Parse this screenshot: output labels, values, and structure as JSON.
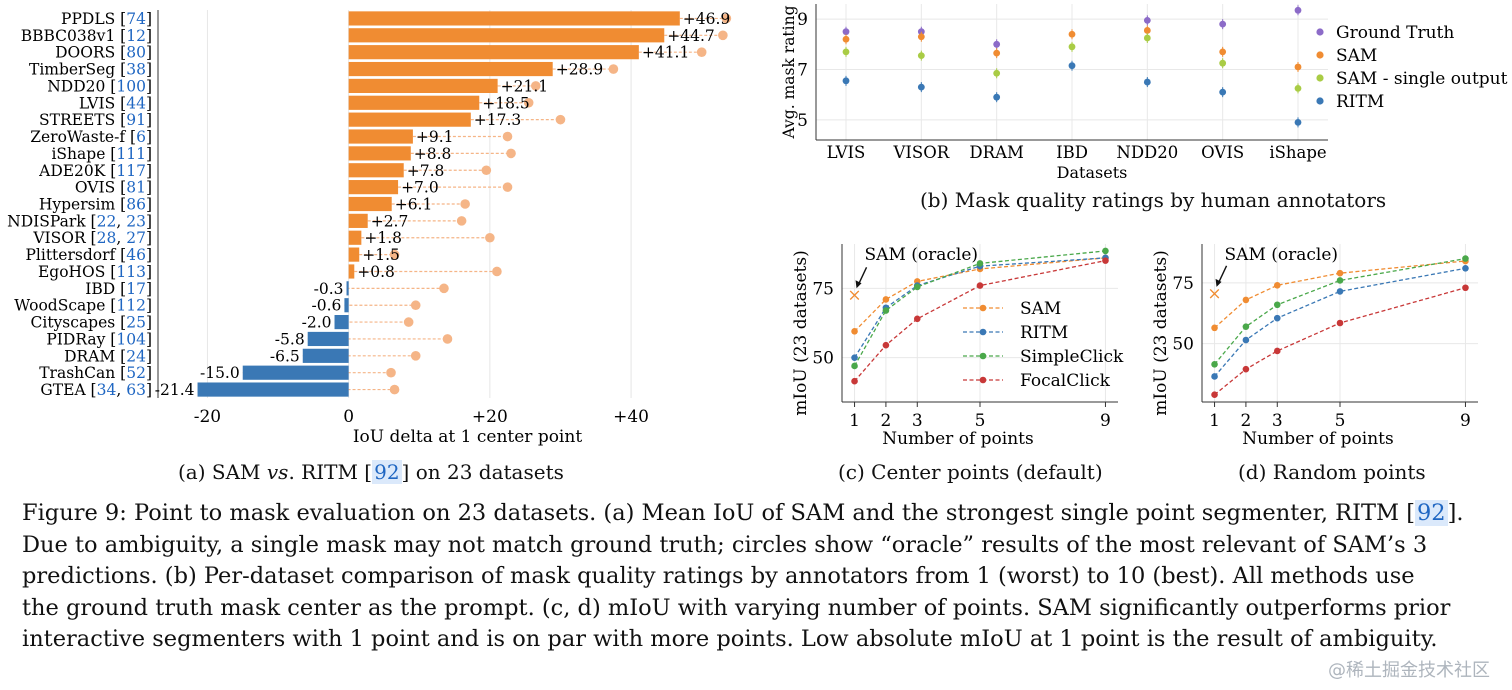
{
  "chart_data": [
    {
      "id": "a",
      "type": "bar",
      "orientation": "horizontal",
      "caption_parts": [
        "(a) SAM ",
        "vs",
        ". RITM [",
        "92",
        "] on 23 datasets"
      ],
      "xlabel": "IoU delta at 1 center point",
      "xlim": [
        -27,
        55
      ],
      "xticks": [
        "-20",
        "0",
        "+20",
        "+40"
      ],
      "xtick_values": [
        -20,
        0,
        20,
        40
      ],
      "grid": "vertical",
      "positive_color": "#f08c32",
      "negative_color": "#3a78b5",
      "oracle_color": "#f5b587",
      "categories": [
        {
          "name": "PPDLS",
          "cite": [
            "74"
          ]
        },
        {
          "name": "BBBC038v1",
          "cite": [
            "12"
          ]
        },
        {
          "name": "DOORS",
          "cite": [
            "80"
          ]
        },
        {
          "name": "TimberSeg",
          "cite": [
            "38"
          ]
        },
        {
          "name": "NDD20",
          "cite": [
            "100"
          ]
        },
        {
          "name": "LVIS",
          "cite": [
            "44"
          ]
        },
        {
          "name": "STREETS",
          "cite": [
            "91"
          ]
        },
        {
          "name": "ZeroWaste-f",
          "cite": [
            "6"
          ]
        },
        {
          "name": "iShape",
          "cite": [
            "111"
          ]
        },
        {
          "name": "ADE20K",
          "cite": [
            "117"
          ]
        },
        {
          "name": "OVIS",
          "cite": [
            "81"
          ]
        },
        {
          "name": "Hypersim",
          "cite": [
            "86"
          ]
        },
        {
          "name": "NDISPark",
          "cite": [
            "22",
            "23"
          ]
        },
        {
          "name": "VISOR",
          "cite": [
            "28",
            "27"
          ]
        },
        {
          "name": "Plittersdorf",
          "cite": [
            "46"
          ]
        },
        {
          "name": "EgoHOS",
          "cite": [
            "113"
          ]
        },
        {
          "name": "IBD",
          "cite": [
            "17"
          ]
        },
        {
          "name": "WoodScape",
          "cite": [
            "112"
          ]
        },
        {
          "name": "Cityscapes",
          "cite": [
            "25"
          ]
        },
        {
          "name": "PIDRay",
          "cite": [
            "104"
          ]
        },
        {
          "name": "DRAM",
          "cite": [
            "24"
          ]
        },
        {
          "name": "TrashCan",
          "cite": [
            "52"
          ]
        },
        {
          "name": "GTEA",
          "cite": [
            "34",
            "63"
          ]
        }
      ],
      "values": [
        46.9,
        44.7,
        41.1,
        28.9,
        21.1,
        18.5,
        17.3,
        9.1,
        8.8,
        7.8,
        7.0,
        6.1,
        2.7,
        1.8,
        1.5,
        0.8,
        -0.3,
        -0.6,
        -2.0,
        -5.8,
        -6.5,
        -15.0,
        -21.4
      ],
      "value_labels": [
        "+46.9",
        "+44.7",
        "+41.1",
        "+28.9",
        "+21.1",
        "+18.5",
        "+17.3",
        "+9.1",
        "+8.8",
        "+7.8",
        "+7.0",
        "+6.1",
        "+2.7",
        "+1.8",
        "+1.5",
        "+0.8",
        "-0.3",
        "-0.6",
        "-2.0",
        "-5.8",
        "-6.5",
        "-15.0",
        "-21.4"
      ],
      "oracle_values": [
        53.5,
        53.0,
        50.0,
        37.5,
        26.5,
        25.5,
        30.0,
        22.5,
        23.0,
        19.5,
        22.5,
        16.5,
        16.0,
        20.0,
        6.5,
        21.0,
        13.5,
        9.5,
        8.5,
        14.0,
        9.5,
        6.0,
        6.5
      ]
    },
    {
      "id": "b",
      "type": "scatter",
      "caption": "(b) Mask quality ratings by human annotators",
      "xlabel": "Datasets",
      "ylabel": "Avg. mask rating",
      "ylim": [
        4.2,
        9.6
      ],
      "yticks": [
        5,
        7,
        9
      ],
      "grid": true,
      "legend_position": "right",
      "categories": [
        "LVIS",
        "VISOR",
        "DRAM",
        "IBD",
        "NDD20",
        "OVIS",
        "iShape"
      ],
      "series": [
        {
          "name": "Ground Truth",
          "color": "#8c6bc8",
          "values": [
            8.5,
            8.5,
            8.0,
            null,
            8.95,
            8.8,
            9.35
          ]
        },
        {
          "name": "SAM",
          "color": "#f08c32",
          "values": [
            8.2,
            8.3,
            7.65,
            8.4,
            8.55,
            7.7,
            7.1
          ]
        },
        {
          "name": "SAM - single output",
          "color": "#a9cc45",
          "values": [
            7.7,
            7.55,
            6.85,
            7.9,
            8.25,
            7.25,
            6.25
          ]
        },
        {
          "name": "RITM",
          "color": "#3a78b5",
          "values": [
            6.55,
            6.3,
            5.9,
            7.15,
            6.5,
            6.1,
            4.9
          ]
        }
      ]
    },
    {
      "id": "c",
      "type": "line",
      "caption": "(c) Center points (default)",
      "xlabel": "Number of points",
      "ylabel": "mIoU (23 datasets)",
      "x": [
        1,
        2,
        3,
        5,
        9
      ],
      "xlim": [
        0.6,
        9.4
      ],
      "ylim": [
        34,
        91
      ],
      "yticks": [
        50,
        75
      ],
      "grid": true,
      "legend_position": "center-right",
      "annotation": {
        "text": "SAM (oracle)",
        "x": 1,
        "y": 72.5,
        "color": "#f08c32"
      },
      "series": [
        {
          "name": "SAM",
          "color": "#f08c32",
          "values": [
            59.5,
            71,
            77.5,
            82,
            86
          ]
        },
        {
          "name": "RITM",
          "color": "#3a78b5",
          "values": [
            50,
            68,
            76,
            83,
            86
          ]
        },
        {
          "name": "SimpleClick",
          "color": "#4aa84a",
          "values": [
            47,
            67,
            75.5,
            84,
            88.5
          ]
        },
        {
          "name": "FocalClick",
          "color": "#c83838",
          "values": [
            41.5,
            54.5,
            64,
            76,
            85
          ]
        }
      ]
    },
    {
      "id": "d",
      "type": "line",
      "caption": "(d) Random points",
      "xlabel": "Number of points",
      "ylabel": "mIoU (23 datasets)",
      "x": [
        1,
        2,
        3,
        5,
        9
      ],
      "xlim": [
        0.6,
        9.4
      ],
      "ylim": [
        26,
        91
      ],
      "yticks": [
        50,
        75
      ],
      "grid": true,
      "annotation": {
        "text": "SAM (oracle)",
        "x": 1,
        "y": 70.5,
        "color": "#f08c32"
      },
      "series": [
        {
          "name": "SAM",
          "color": "#f08c32",
          "values": [
            56.5,
            68,
            74,
            79,
            84
          ]
        },
        {
          "name": "RITM",
          "color": "#3a78b5",
          "values": [
            36.5,
            51.5,
            60.5,
            71.5,
            81
          ]
        },
        {
          "name": "SimpleClick",
          "color": "#4aa84a",
          "values": [
            41.5,
            57,
            66,
            76,
            85
          ]
        },
        {
          "name": "FocalClick",
          "color": "#c83838",
          "values": [
            29,
            39.5,
            47,
            58.5,
            73
          ]
        }
      ]
    }
  ],
  "figure_caption": {
    "line1_a": "Figure 9: Point to mask evaluation on 23 datasets. (a) Mean IoU of SAM and the strongest single point segmenter, RITM [",
    "line1_cite": "92",
    "line1_b": "].",
    "line2": "Due to ambiguity, a single mask may not match ground truth; circles show “oracle” results of the most relevant of SAM’s 3",
    "line3": "predictions. (b) Per-dataset comparison of mask quality ratings by annotators from 1 (worst) to 10 (best). All methods use",
    "line4": "the ground truth mask center as the prompt. (c, d) mIoU with varying number of points. SAM significantly outperforms prior",
    "line5": "interactive segmenters with 1 point and is on par with more points. Low absolute mIoU at 1 point is the result of ambiguity."
  },
  "watermark": "@稀土掘金技术社区"
}
